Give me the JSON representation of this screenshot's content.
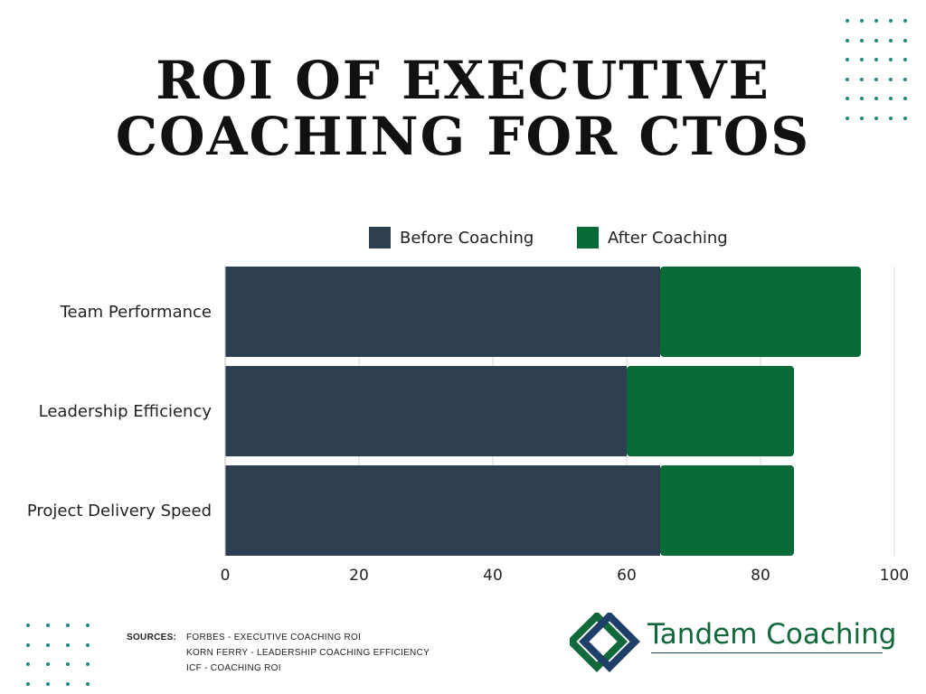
{
  "title": [
    "ROI OF EXECUTIVE",
    "COACHING FOR CTOS"
  ],
  "chart_data": {
    "type": "bar",
    "orientation": "horizontal",
    "stacked": true,
    "categories": [
      "Team Performance",
      "Leadership Efficiency",
      "Project Delivery Speed"
    ],
    "series": [
      {
        "name": "Before Coaching",
        "values": [
          65,
          60,
          65
        ],
        "color": "#2c3e50"
      },
      {
        "name": "After Coaching",
        "values": [
          30,
          25,
          20
        ],
        "color": "#086b37"
      }
    ],
    "xlim": [
      0,
      100
    ],
    "xticks": [
      0,
      20,
      40,
      60,
      80,
      100
    ],
    "grid": "vertical",
    "legend_position": "top"
  },
  "sources": {
    "label": "SOURCES:",
    "items": [
      "FORBES - EXECUTIVE COACHING ROI",
      "KORN FERRY - LEADERSHIP COACHING EFFICIENCY",
      "ICF - COACHING ROI"
    ]
  },
  "logo": {
    "text": "Tandem Coaching",
    "green": "#11683a",
    "blue": "#1d3f68"
  },
  "decor_color": "#1f8a7e"
}
